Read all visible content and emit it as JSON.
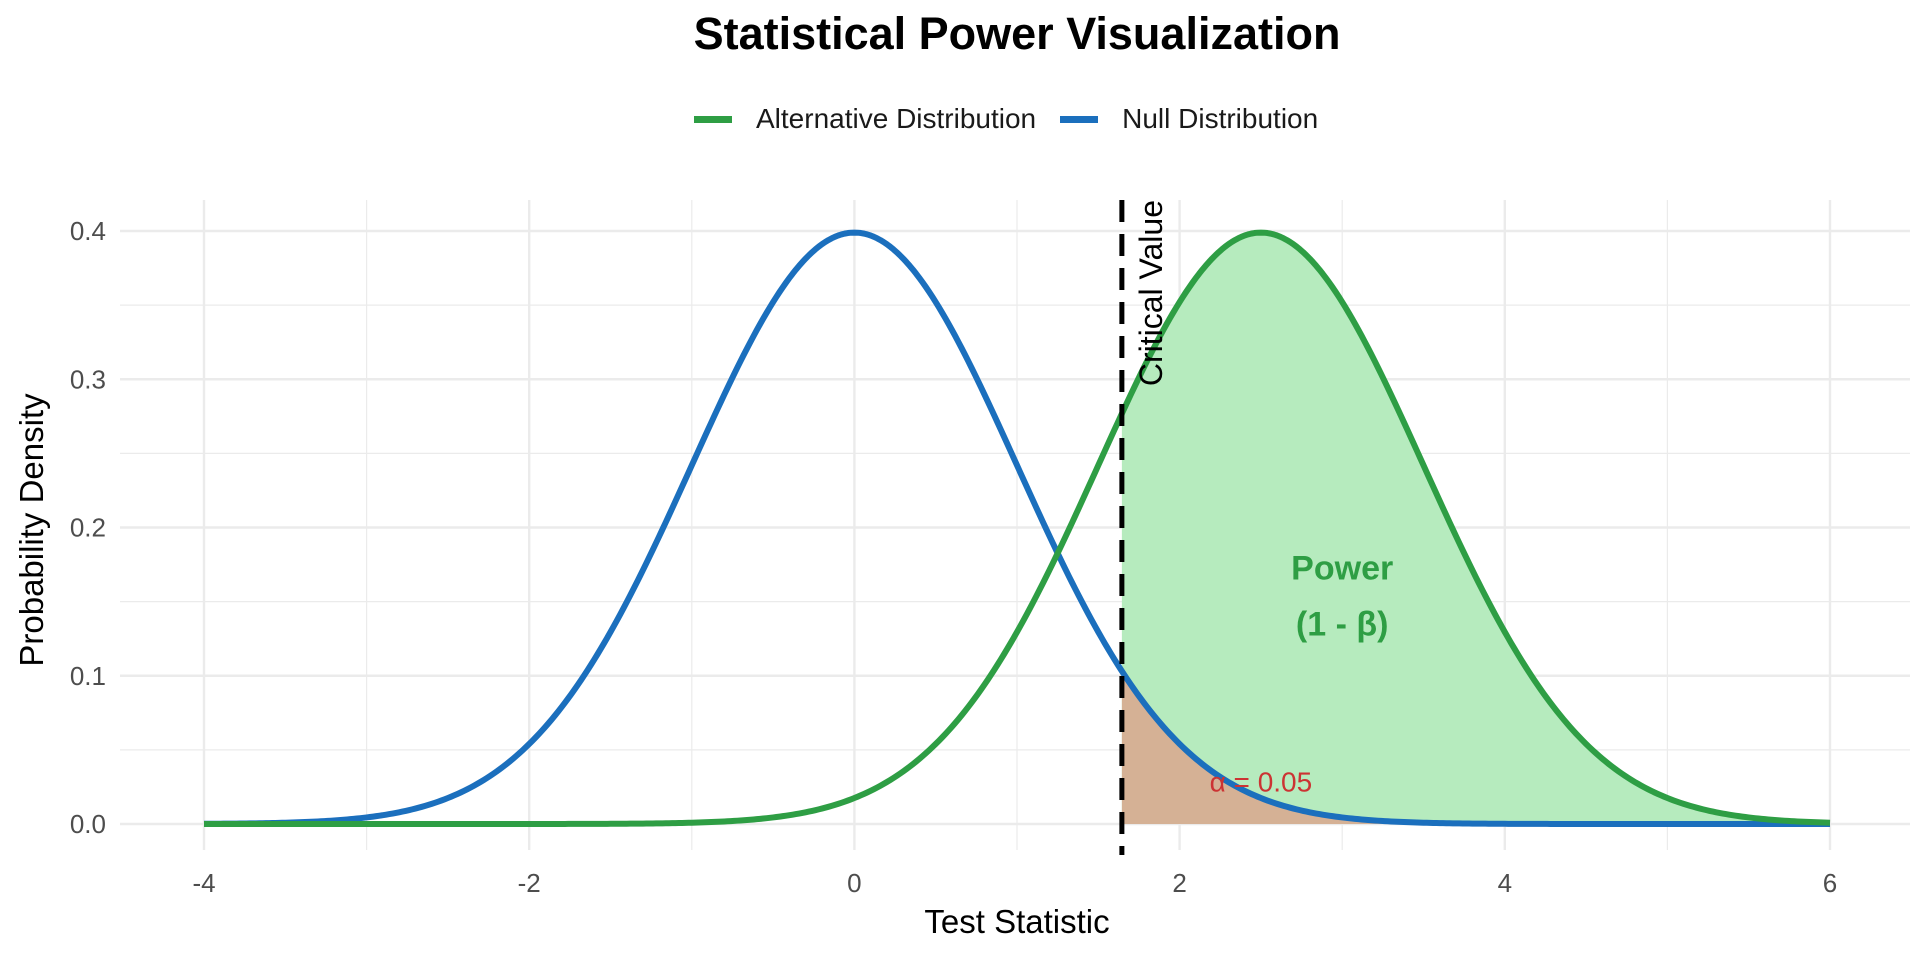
{
  "chart_data": {
    "type": "line",
    "title": "Statistical Power Visualization",
    "xlabel": "Test Statistic",
    "ylabel": "Probability Density",
    "xlim": [
      -4,
      6
    ],
    "ylim": [
      0,
      0.4
    ],
    "x_ticks": [
      -4,
      -2,
      0,
      2,
      4,
      6
    ],
    "x_tick_labels": [
      "-4",
      "-2",
      "0",
      "2",
      "4",
      "6"
    ],
    "y_ticks": [
      0.0,
      0.1,
      0.2,
      0.3,
      0.4
    ],
    "y_tick_labels": [
      "0.0",
      "0.1",
      "0.2",
      "0.3",
      "0.4"
    ],
    "grid": true,
    "legend_position": "top",
    "series": [
      {
        "name": "Alternative Distribution",
        "distribution": "normal",
        "mean": 2.5,
        "sd": 1,
        "color": "#2e9e44"
      },
      {
        "name": "Null Distribution",
        "distribution": "normal",
        "mean": 0,
        "sd": 1,
        "color": "#1b6fbd"
      }
    ],
    "critical_value": 1.645,
    "critical_label": "Critical Value",
    "shaded_regions": [
      {
        "name": "power",
        "under": "Alternative Distribution",
        "from": 1.645,
        "to": 6,
        "color": "#b6ebbe"
      },
      {
        "name": "alpha",
        "under": "Null Distribution",
        "from": 1.645,
        "to": 6,
        "color": "#d5b195"
      }
    ],
    "annotations": {
      "power_line1": "Power",
      "power_line2": "(1 - β)",
      "power_color": "#2e9e44",
      "alpha": "α = 0.05",
      "alpha_color": "#cc3333"
    }
  }
}
